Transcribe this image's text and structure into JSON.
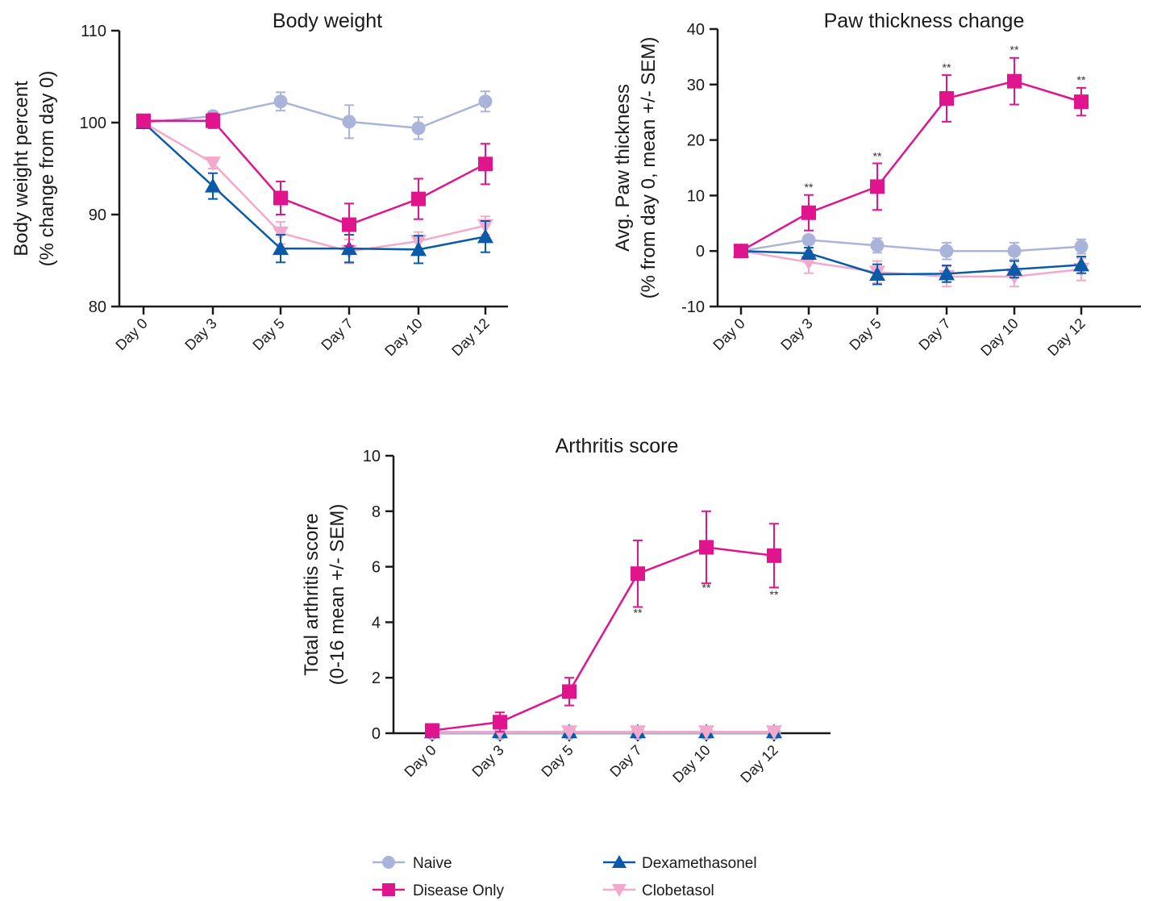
{
  "colors": {
    "naive": "#aab4da",
    "disease": "#e0148c",
    "dexamethasone": "#0a5aa8",
    "clobetasol": "#f2a9cc",
    "axis": "#1a1a1a"
  },
  "legend": {
    "naive": "Naive",
    "disease": "Disease Only",
    "dexamethasone": "Dexamethasonel",
    "clobetasol": "Clobetasol"
  },
  "chart_data": [
    {
      "type": "line",
      "title": "Body weight",
      "ylabel": [
        "Body weight percent",
        "(% change from day 0)"
      ],
      "categories": [
        "Day 0",
        "Day 3",
        "Day 5",
        "Day 7",
        "Day 10",
        "Day 12"
      ],
      "ylim": [
        80,
        110
      ],
      "yticks": [
        80,
        90,
        100,
        110
      ],
      "series": [
        {
          "key": "naive",
          "values": [
            100,
            100.7,
            102.3,
            100.1,
            99.4,
            102.3
          ],
          "err": [
            0,
            0.5,
            1.0,
            1.8,
            1.2,
            1.1
          ]
        },
        {
          "key": "clobetasol",
          "values": [
            100,
            95.6,
            88.0,
            86.0,
            87.1,
            88.8
          ],
          "err": [
            0,
            0.6,
            1.2,
            1.3,
            1.0,
            1.0
          ]
        },
        {
          "key": "dexamethasone",
          "values": [
            100,
            93.1,
            86.3,
            86.3,
            86.2,
            87.6
          ],
          "err": [
            0,
            1.4,
            1.5,
            1.5,
            1.5,
            1.7
          ]
        },
        {
          "key": "disease",
          "values": [
            100.2,
            100.2,
            91.8,
            88.9,
            91.7,
            95.5
          ],
          "err": [
            0.4,
            0.8,
            1.8,
            2.3,
            2.2,
            2.2
          ]
        }
      ],
      "annotations": []
    },
    {
      "type": "line",
      "title": "Paw thickness change",
      "ylabel": [
        "Avg. Paw thickness",
        "(% from day 0, mean +/- SEM)"
      ],
      "categories": [
        "Day 0",
        "Day 3",
        "Day 5",
        "Day 7",
        "Day 10",
        "Day 12"
      ],
      "ylim": [
        -10,
        40
      ],
      "yticks": [
        -10,
        0,
        10,
        20,
        30,
        40
      ],
      "series": [
        {
          "key": "naive",
          "values": [
            0,
            2.0,
            1.0,
            0,
            0,
            0.8
          ],
          "err": [
            0,
            0.8,
            1.3,
            1.5,
            1.5,
            1.3
          ]
        },
        {
          "key": "clobetasol",
          "values": [
            0,
            -2.0,
            -3.8,
            -4.6,
            -4.6,
            -3.3
          ],
          "err": [
            0,
            2.0,
            2.0,
            1.8,
            1.8,
            2.0
          ]
        },
        {
          "key": "dexamethasone",
          "values": [
            0,
            -0.4,
            -4.2,
            -4.1,
            -3.3,
            -2.5
          ],
          "err": [
            0,
            1.0,
            1.8,
            1.5,
            1.5,
            1.5
          ]
        },
        {
          "key": "disease",
          "values": [
            0,
            6.9,
            11.6,
            27.5,
            30.6,
            26.9
          ],
          "err": [
            0,
            3.2,
            4.2,
            4.2,
            4.2,
            2.5
          ]
        }
      ],
      "annotations": [
        {
          "label": "**",
          "index": 1,
          "value": 10.8
        },
        {
          "label": "**",
          "index": 2,
          "value": 16.4
        },
        {
          "label": "**",
          "index": 3,
          "value": 32.4
        },
        {
          "label": "**",
          "index": 4,
          "value": 35.6
        },
        {
          "label": "**",
          "index": 5,
          "value": 30.1
        }
      ]
    },
    {
      "type": "line",
      "title": "Arthritis score",
      "ylabel": [
        "Total arthritis score",
        "(0-16 mean +/- SEM)"
      ],
      "categories": [
        "Day 0",
        "Day 3",
        "Day 5",
        "Day 7",
        "Day 10",
        "Day 12"
      ],
      "ylim": [
        0,
        10
      ],
      "yticks": [
        0,
        2,
        4,
        6,
        8,
        10
      ],
      "series": [
        {
          "key": "naive",
          "values": [
            0,
            0,
            0,
            0,
            0,
            0
          ],
          "err": [
            0,
            0,
            0,
            0,
            0,
            0
          ]
        },
        {
          "key": "dexamethasone",
          "values": [
            0.05,
            0.05,
            0.05,
            0.05,
            0.05,
            0.05
          ],
          "err": [
            0,
            0,
            0,
            0,
            0,
            0
          ]
        },
        {
          "key": "clobetasol",
          "values": [
            0.05,
            0.05,
            0.05,
            0.05,
            0.05,
            0.05
          ],
          "err": [
            0,
            0,
            0,
            0,
            0,
            0
          ]
        },
        {
          "key": "disease",
          "values": [
            0.1,
            0.4,
            1.5,
            5.75,
            6.7,
            6.4
          ],
          "err": [
            0.2,
            0.35,
            0.5,
            1.2,
            1.3,
            1.15
          ]
        }
      ],
      "annotations": [
        {
          "label": "**",
          "index": 3,
          "value": 4.2
        },
        {
          "label": "**",
          "index": 4,
          "value": 5.1
        },
        {
          "label": "**",
          "index": 5,
          "value": 4.85
        }
      ]
    }
  ]
}
